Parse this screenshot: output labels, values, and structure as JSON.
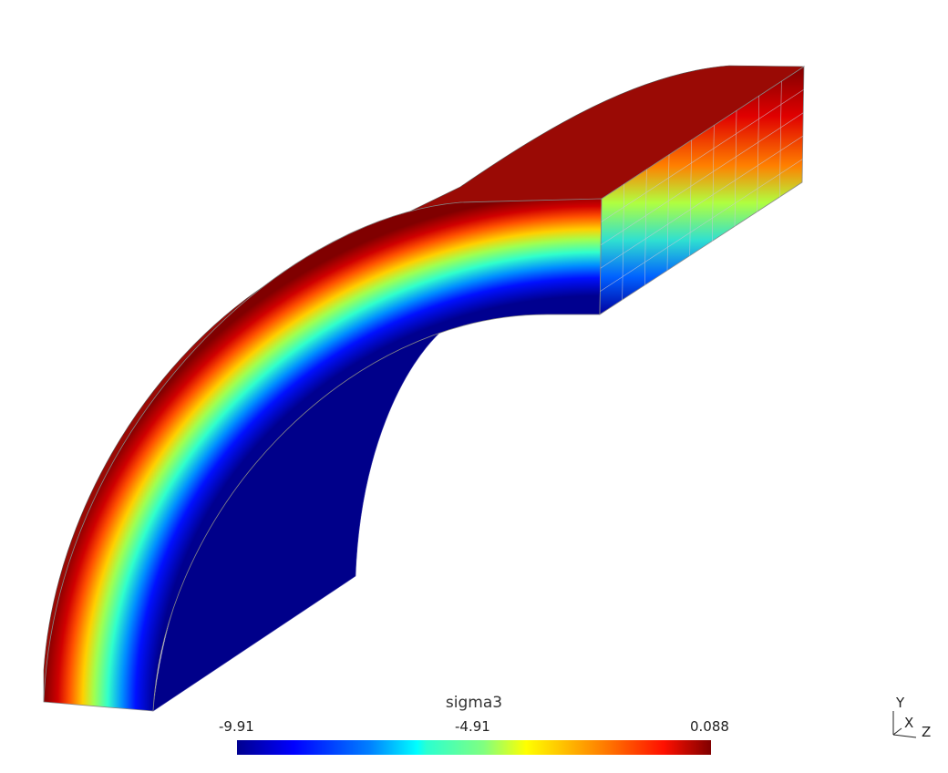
{
  "colorbar": {
    "title": "sigma3",
    "min_label": "-9.91",
    "mid_label": "-4.91",
    "max_label": "0.088",
    "colormap": "jet",
    "colors": [
      "#00008f",
      "#0000ff",
      "#00ffff",
      "#ffff00",
      "#ff0000",
      "#800000"
    ]
  },
  "axes_triad": {
    "y": "Y",
    "x": "X",
    "z": "Z"
  }
}
